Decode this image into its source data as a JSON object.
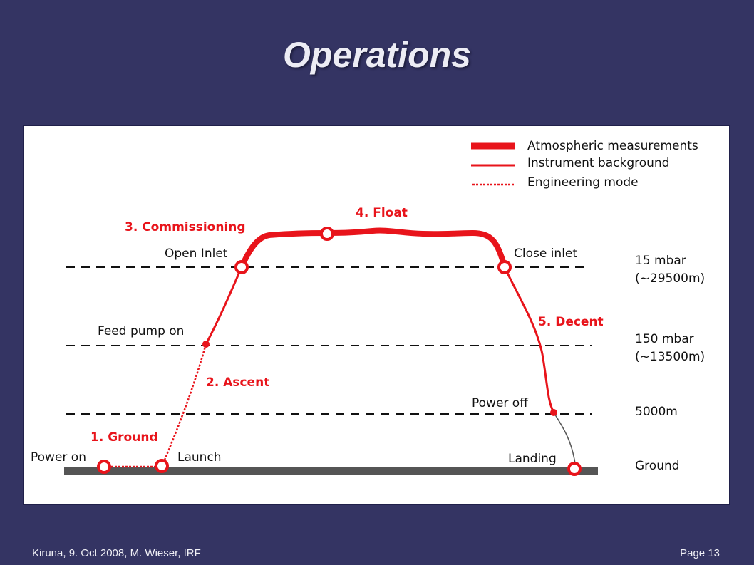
{
  "title": "Operations",
  "legend": {
    "atmospheric": "Atmospheric measurements",
    "background": "Instrument background",
    "engineering": "Engineering mode"
  },
  "phases": {
    "ground": "1. Ground",
    "ascent": "2. Ascent",
    "commissioning": "3. Commissioning",
    "float": "4. Float",
    "decent": "5. Decent"
  },
  "events": {
    "power_on": "Power on",
    "launch": "Launch",
    "feed_pump_on": "Feed pump on",
    "open_inlet": "Open Inlet",
    "close_inlet": "Close inlet",
    "power_off": "Power off",
    "landing": "Landing"
  },
  "levels": {
    "l15_mbar": "15 mbar",
    "l15_alt": "(~29500m)",
    "l150_mbar": "150 mbar",
    "l150_alt": "(~13500m)",
    "l5000": "5000m",
    "ground": "Ground"
  },
  "colors": {
    "background": "#343463",
    "track": "#e8141b",
    "ground_bar": "#555555"
  },
  "footer": {
    "left": "Kiruna, 9. Oct  2008, M. Wieser, IRF",
    "right": "Page 13"
  }
}
